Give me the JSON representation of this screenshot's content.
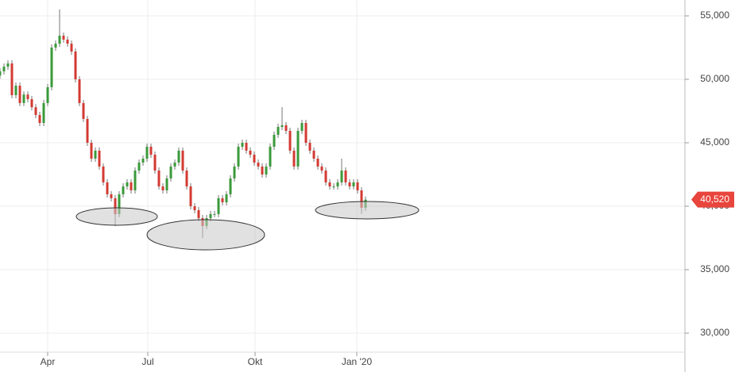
{
  "chart_data": {
    "type": "candlestick",
    "up_color": "#3a9a3a",
    "down_color": "#d33a32",
    "wick_color": "#777777",
    "xlim": [
      0,
      172.4
    ],
    "ylim": [
      28500,
      56250
    ],
    "grid": true,
    "xticks": [
      {
        "value": 12,
        "label": "Apr"
      },
      {
        "value": 37.2,
        "label": "Jul"
      },
      {
        "value": 64.2,
        "label": "Okt"
      },
      {
        "value": 89.8,
        "label": "Jan '20"
      }
    ],
    "yticks": [
      {
        "value": 30000,
        "label": "30,000"
      },
      {
        "value": 35000,
        "label": "35,000"
      },
      {
        "value": 40000,
        "label": "40,000"
      },
      {
        "value": 45000,
        "label": "45,000"
      },
      {
        "value": 50000,
        "label": "50,000"
      },
      {
        "value": 55000,
        "label": "55,000"
      }
    ],
    "last_price": {
      "value": 40520,
      "label": "40,520"
    },
    "open": [
      50300,
      50630,
      51000,
      51250,
      48750,
      49500,
      48130,
      48800,
      48440,
      47800,
      47190,
      46560,
      48130,
      49380,
      52500,
      52810,
      53440,
      53130,
      52810,
      52190,
      50000,
      48130,
      46880,
      45000,
      43750,
      44380,
      43130,
      41880,
      40940,
      40630,
      39380,
      40940,
      41560,
      41880,
      41250,
      42810,
      43440,
      43750,
      44690,
      44060,
      42810,
      41560,
      41250,
      42190,
      43130,
      43440,
      44380,
      42810,
      41560,
      40000,
      39690,
      39060,
      38440,
      39060,
      39380,
      39380,
      40630,
      40310,
      40940,
      42190,
      43130,
      44690,
      45000,
      44380,
      44060,
      43440,
      43130,
      42500,
      43130,
      44690,
      45630,
      46250,
      46380,
      45940,
      44380,
      43130,
      45940,
      46560,
      45000,
      44380,
      43750,
      43130,
      42810,
      41880,
      41560,
      41560,
      41880,
      42810,
      41880,
      41560,
      41880,
      41250,
      39880
    ],
    "high": [
      50880,
      51250,
      51500,
      51500,
      49750,
      49750,
      49050,
      49050,
      48690,
      48050,
      47440,
      48380,
      49630,
      52750,
      53060,
      55500,
      53690,
      53380,
      53060,
      52440,
      50250,
      48380,
      47130,
      45250,
      44630,
      44630,
      43380,
      42130,
      41190,
      40880,
      41190,
      41810,
      42130,
      42130,
      43060,
      43690,
      44000,
      44940,
      44940,
      44310,
      43060,
      41810,
      42440,
      43380,
      43690,
      44630,
      44630,
      43060,
      41810,
      40250,
      39940,
      39310,
      39310,
      39630,
      39630,
      40880,
      40880,
      41190,
      42440,
      43380,
      44940,
      45250,
      45250,
      44630,
      44310,
      43690,
      43380,
      43380,
      44940,
      45880,
      46500,
      47810,
      46630,
      46190,
      44630,
      46190,
      46810,
      46810,
      45250,
      44630,
      44000,
      43380,
      43060,
      42130,
      41810,
      42130,
      43750,
      43060,
      42130,
      42130,
      42130,
      41500,
      40770
    ],
    "low": [
      50050,
      50380,
      50750,
      48500,
      48500,
      47880,
      47880,
      48190,
      47550,
      46940,
      46310,
      46310,
      47880,
      49130,
      52250,
      52560,
      52880,
      52560,
      51940,
      49750,
      47880,
      46630,
      44750,
      43500,
      43500,
      42880,
      41630,
      40690,
      40380,
      38440,
      39130,
      40690,
      41310,
      41000,
      41000,
      42560,
      43190,
      43500,
      43810,
      42560,
      41310,
      41000,
      41000,
      41940,
      42880,
      43190,
      42560,
      41310,
      39750,
      39440,
      38810,
      37500,
      38190,
      38810,
      39130,
      39130,
      40060,
      40060,
      40690,
      41940,
      42880,
      44440,
      44130,
      43810,
      43190,
      42880,
      42250,
      42250,
      42880,
      44440,
      45380,
      46000,
      45690,
      44130,
      42880,
      42880,
      45690,
      44750,
      44130,
      43500,
      42880,
      42560,
      41630,
      41310,
      41310,
      41310,
      41630,
      41630,
      41310,
      41310,
      41000,
      39380,
      39630
    ],
    "close": [
      50630,
      51000,
      51250,
      48750,
      49500,
      48130,
      48800,
      48440,
      47800,
      47190,
      46560,
      48130,
      49380,
      52500,
      52810,
      53440,
      53130,
      52810,
      52190,
      50000,
      48130,
      46880,
      45000,
      43750,
      44380,
      43130,
      41880,
      40940,
      40630,
      39380,
      40940,
      41560,
      41880,
      41250,
      42810,
      43440,
      43750,
      44690,
      44060,
      42810,
      41560,
      41250,
      42190,
      43130,
      43440,
      44380,
      42810,
      41560,
      40000,
      39690,
      39060,
      38440,
      39060,
      39380,
      39380,
      40630,
      40310,
      40940,
      42190,
      43130,
      44690,
      45000,
      44380,
      44060,
      43440,
      43130,
      42500,
      43130,
      44690,
      45630,
      46250,
      46380,
      45940,
      44380,
      43130,
      45940,
      46560,
      45000,
      44380,
      43750,
      43130,
      42810,
      41880,
      41560,
      41560,
      41880,
      42810,
      41880,
      41560,
      41880,
      41250,
      39880,
      40520
    ]
  }
}
